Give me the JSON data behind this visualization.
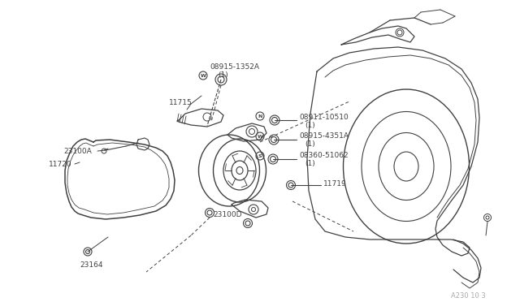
{
  "bg_color": "#ffffff",
  "line_color": "#404040",
  "text_color": "#404040",
  "watermark": "A230 10 3",
  "parts": {
    "08915-1352A": {
      "circle_letter": "W",
      "label": "08915-1352A",
      "sub": "(1)"
    },
    "11715": {
      "label": "11715"
    },
    "23100A": {
      "label": "23100A"
    },
    "08911-10510": {
      "circle_letter": "N",
      "label": "08911-10510",
      "sub": "(1)"
    },
    "08915-4351A": {
      "circle_letter": "W",
      "label": "08915-4351A",
      "sub": "(1)"
    },
    "08360-51062": {
      "circle_letter": "S",
      "label": "08360-51062",
      "sub": "(1)"
    },
    "11720": {
      "label": "11720"
    },
    "11719": {
      "label": "11719"
    },
    "23100D": {
      "label": "23100D"
    },
    "23164": {
      "label": "23164"
    }
  }
}
